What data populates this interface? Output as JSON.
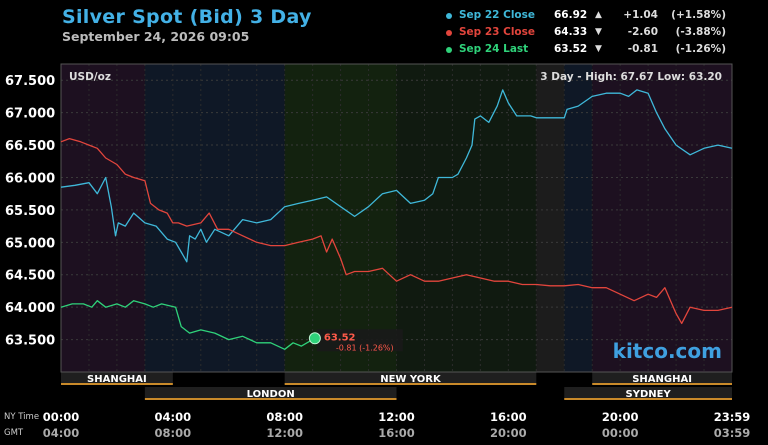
{
  "header": {
    "title": "Silver Spot (Bid) 3 Day",
    "subtitle": "September 24, 2026 09:05"
  },
  "legend": [
    {
      "name": "Sep 22 Close",
      "value": "66.92",
      "arrow": "▲",
      "change": "+1.04",
      "pct": "(+1.58%)",
      "color": "#3fb8d9"
    },
    {
      "name": "Sep 23 Close",
      "value": "64.33",
      "arrow": "▼",
      "change": "-2.60",
      "pct": "(-3.88%)",
      "color": "#e2453c"
    },
    {
      "name": "Sep 24 Last",
      "value": "63.52",
      "arrow": "▼",
      "change": "-0.81",
      "pct": "(-1.26%)",
      "color": "#2fd27a"
    }
  ],
  "chart_data": {
    "type": "line",
    "unit_label": "USD/oz",
    "range_label": "3 Day - High: 67.67  Low: 63.20",
    "ylim": [
      63.0,
      67.75
    ],
    "yticks": [
      63.5,
      64.0,
      64.5,
      65.0,
      65.5,
      66.0,
      66.5,
      67.0,
      67.5
    ],
    "ytick_labels": [
      "63.500",
      "64.000",
      "64.500",
      "65.000",
      "65.500",
      "66.000",
      "66.500",
      "67.000",
      "67.500"
    ],
    "xlim": [
      0,
      24
    ],
    "xticks": [
      0,
      4,
      8,
      12,
      16,
      20,
      24
    ],
    "xtick_labels_ny": [
      "00:00",
      "04:00",
      "08:00",
      "12:00",
      "16:00",
      "20:00",
      "23:59"
    ],
    "xtick_labels_gmt": [
      "04:00",
      "08:00",
      "12:00",
      "16:00",
      "20:00",
      "00:00",
      "03:59"
    ],
    "tz_labels": [
      "NY Time",
      "GMT"
    ],
    "sessions_top": [
      {
        "name": "SHANGHAI",
        "start": 0,
        "end": 4
      },
      {
        "name": "NEW YORK",
        "start": 8,
        "end": 17
      },
      {
        "name": "SHANGHAI",
        "start": 19,
        "end": 24
      }
    ],
    "sessions_bottom": [
      {
        "name": "LONDON",
        "start": 3,
        "end": 12
      },
      {
        "name": "SYDNEY",
        "start": 18,
        "end": 24
      }
    ],
    "series": [
      {
        "name": "Sep 22 Close",
        "color": "#3fb8d9",
        "points": [
          [
            0,
            65.85
          ],
          [
            0.5,
            65.88
          ],
          [
            1,
            65.92
          ],
          [
            1.3,
            65.75
          ],
          [
            1.6,
            66.0
          ],
          [
            1.8,
            65.55
          ],
          [
            1.95,
            65.1
          ],
          [
            2.05,
            65.3
          ],
          [
            2.3,
            65.25
          ],
          [
            2.6,
            65.45
          ],
          [
            3,
            65.3
          ],
          [
            3.4,
            65.25
          ],
          [
            3.8,
            65.05
          ],
          [
            4.1,
            65.0
          ],
          [
            4.3,
            64.85
          ],
          [
            4.5,
            64.7
          ],
          [
            4.6,
            65.1
          ],
          [
            4.8,
            65.05
          ],
          [
            5,
            65.2
          ],
          [
            5.2,
            65.0
          ],
          [
            5.5,
            65.2
          ],
          [
            6,
            65.1
          ],
          [
            6.5,
            65.35
          ],
          [
            7,
            65.3
          ],
          [
            7.5,
            65.35
          ],
          [
            8,
            65.55
          ],
          [
            8.5,
            65.6
          ],
          [
            9,
            65.65
          ],
          [
            9.5,
            65.7
          ],
          [
            10,
            65.55
          ],
          [
            10.5,
            65.4
          ],
          [
            11,
            65.55
          ],
          [
            11.5,
            65.75
          ],
          [
            12,
            65.8
          ],
          [
            12.5,
            65.6
          ],
          [
            13,
            65.65
          ],
          [
            13.3,
            65.75
          ],
          [
            13.5,
            66.0
          ],
          [
            14,
            66.0
          ],
          [
            14.2,
            66.05
          ],
          [
            14.5,
            66.3
          ],
          [
            14.7,
            66.5
          ],
          [
            14.8,
            66.9
          ],
          [
            15,
            66.95
          ],
          [
            15.3,
            66.85
          ],
          [
            15.6,
            67.1
          ],
          [
            15.8,
            67.35
          ],
          [
            16,
            67.15
          ],
          [
            16.3,
            66.95
          ],
          [
            16.8,
            66.95
          ],
          [
            17,
            66.92
          ],
          [
            17.5,
            66.92
          ],
          [
            18,
            66.92
          ],
          [
            18.1,
            67.05
          ],
          [
            18.5,
            67.1
          ],
          [
            19,
            67.25
          ],
          [
            19.5,
            67.3
          ],
          [
            20,
            67.3
          ],
          [
            20.3,
            67.25
          ],
          [
            20.6,
            67.35
          ],
          [
            21,
            67.3
          ],
          [
            21.3,
            67.0
          ],
          [
            21.6,
            66.75
          ],
          [
            22,
            66.5
          ],
          [
            22.5,
            66.35
          ],
          [
            23,
            66.45
          ],
          [
            23.5,
            66.5
          ],
          [
            24,
            66.45
          ]
        ]
      },
      {
        "name": "Sep 23 Close",
        "color": "#e2453c",
        "points": [
          [
            0,
            66.55
          ],
          [
            0.3,
            66.6
          ],
          [
            0.7,
            66.55
          ],
          [
            1,
            66.5
          ],
          [
            1.3,
            66.45
          ],
          [
            1.6,
            66.3
          ],
          [
            2,
            66.2
          ],
          [
            2.3,
            66.05
          ],
          [
            2.6,
            66.0
          ],
          [
            3,
            65.95
          ],
          [
            3.2,
            65.6
          ],
          [
            3.5,
            65.5
          ],
          [
            3.8,
            65.45
          ],
          [
            4,
            65.3
          ],
          [
            4.2,
            65.3
          ],
          [
            4.5,
            65.25
          ],
          [
            5,
            65.3
          ],
          [
            5.3,
            65.45
          ],
          [
            5.6,
            65.2
          ],
          [
            6,
            65.2
          ],
          [
            6.5,
            65.1
          ],
          [
            7,
            65.0
          ],
          [
            7.5,
            64.95
          ],
          [
            8,
            64.95
          ],
          [
            8.5,
            65.0
          ],
          [
            9,
            65.05
          ],
          [
            9.3,
            65.1
          ],
          [
            9.5,
            64.85
          ],
          [
            9.7,
            65.05
          ],
          [
            10,
            64.75
          ],
          [
            10.2,
            64.5
          ],
          [
            10.5,
            64.55
          ],
          [
            11,
            64.55
          ],
          [
            11.5,
            64.6
          ],
          [
            12,
            64.4
          ],
          [
            12.5,
            64.5
          ],
          [
            13,
            64.4
          ],
          [
            13.5,
            64.4
          ],
          [
            14,
            64.45
          ],
          [
            14.5,
            64.5
          ],
          [
            15,
            64.45
          ],
          [
            15.5,
            64.4
          ],
          [
            16,
            64.4
          ],
          [
            16.5,
            64.35
          ],
          [
            17,
            64.35
          ],
          [
            17.5,
            64.33
          ],
          [
            18,
            64.33
          ],
          [
            18.5,
            64.35
          ],
          [
            19,
            64.3
          ],
          [
            19.5,
            64.3
          ],
          [
            20,
            64.2
          ],
          [
            20.5,
            64.1
          ],
          [
            21,
            64.2
          ],
          [
            21.3,
            64.15
          ],
          [
            21.6,
            64.3
          ],
          [
            21.8,
            64.1
          ],
          [
            22,
            63.9
          ],
          [
            22.2,
            63.75
          ],
          [
            22.5,
            64.0
          ],
          [
            23,
            63.95
          ],
          [
            23.5,
            63.95
          ],
          [
            24,
            64.0
          ]
        ]
      },
      {
        "name": "Sep 24 Last",
        "color": "#2fd27a",
        "points": [
          [
            0,
            64.0
          ],
          [
            0.4,
            64.05
          ],
          [
            0.8,
            64.05
          ],
          [
            1.1,
            64.0
          ],
          [
            1.3,
            64.1
          ],
          [
            1.6,
            64.0
          ],
          [
            2,
            64.05
          ],
          [
            2.3,
            64.0
          ],
          [
            2.6,
            64.1
          ],
          [
            3,
            64.05
          ],
          [
            3.3,
            64.0
          ],
          [
            3.6,
            64.05
          ],
          [
            4.1,
            64.0
          ],
          [
            4.3,
            63.7
          ],
          [
            4.6,
            63.6
          ],
          [
            5,
            63.65
          ],
          [
            5.5,
            63.6
          ],
          [
            6,
            63.5
          ],
          [
            6.5,
            63.55
          ],
          [
            7,
            63.45
          ],
          [
            7.5,
            63.45
          ],
          [
            8,
            63.35
          ],
          [
            8.3,
            63.45
          ],
          [
            8.6,
            63.4
          ],
          [
            8.8,
            63.45
          ],
          [
            9.08,
            63.52
          ]
        ]
      }
    ],
    "last_point": {
      "x": 9.08,
      "y": 63.52,
      "value": "63.52",
      "change": "-0.81 (-1.26%)"
    },
    "watermark": "kitco.com"
  }
}
